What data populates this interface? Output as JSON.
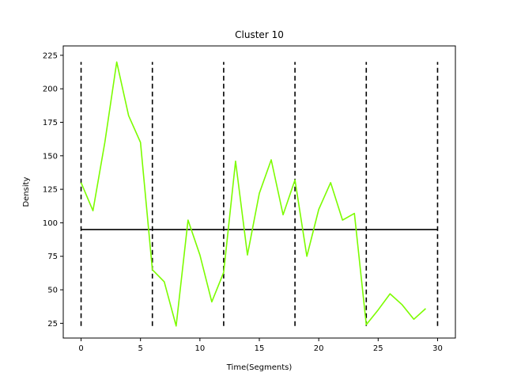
{
  "chart_data": {
    "type": "line",
    "title": "Cluster 10",
    "xlabel": "Time(Segments)",
    "ylabel": "Density",
    "xlim": [
      -1.5,
      31.5
    ],
    "ylim": [
      14,
      232
    ],
    "xticks": [
      0,
      5,
      10,
      15,
      20,
      25,
      30
    ],
    "yticks": [
      25,
      50,
      75,
      100,
      125,
      150,
      175,
      200,
      225
    ],
    "grid": false,
    "series": [
      {
        "color": "#7cfc00",
        "x": [
          0,
          1,
          2,
          3,
          4,
          5,
          6,
          7,
          8,
          9,
          10,
          11,
          12,
          13,
          14,
          15,
          16,
          17,
          18,
          19,
          20,
          21,
          22,
          23,
          24,
          25,
          26,
          27,
          28,
          29
        ],
        "y": [
          130,
          109,
          160,
          220,
          180,
          160,
          65,
          56,
          23,
          102,
          76,
          41,
          63,
          146,
          76,
          122,
          147,
          106,
          132,
          75,
          110,
          130,
          102,
          107,
          24,
          35,
          47,
          39,
          28,
          36
        ]
      }
    ],
    "mean_line": {
      "y": 95,
      "x_range": [
        0,
        30
      ],
      "color": "#000000"
    },
    "segment_markers": {
      "x": [
        0,
        6,
        12,
        18,
        24,
        30
      ],
      "y_range": [
        23,
        220
      ],
      "color": "#000000",
      "style": "dashed"
    }
  }
}
